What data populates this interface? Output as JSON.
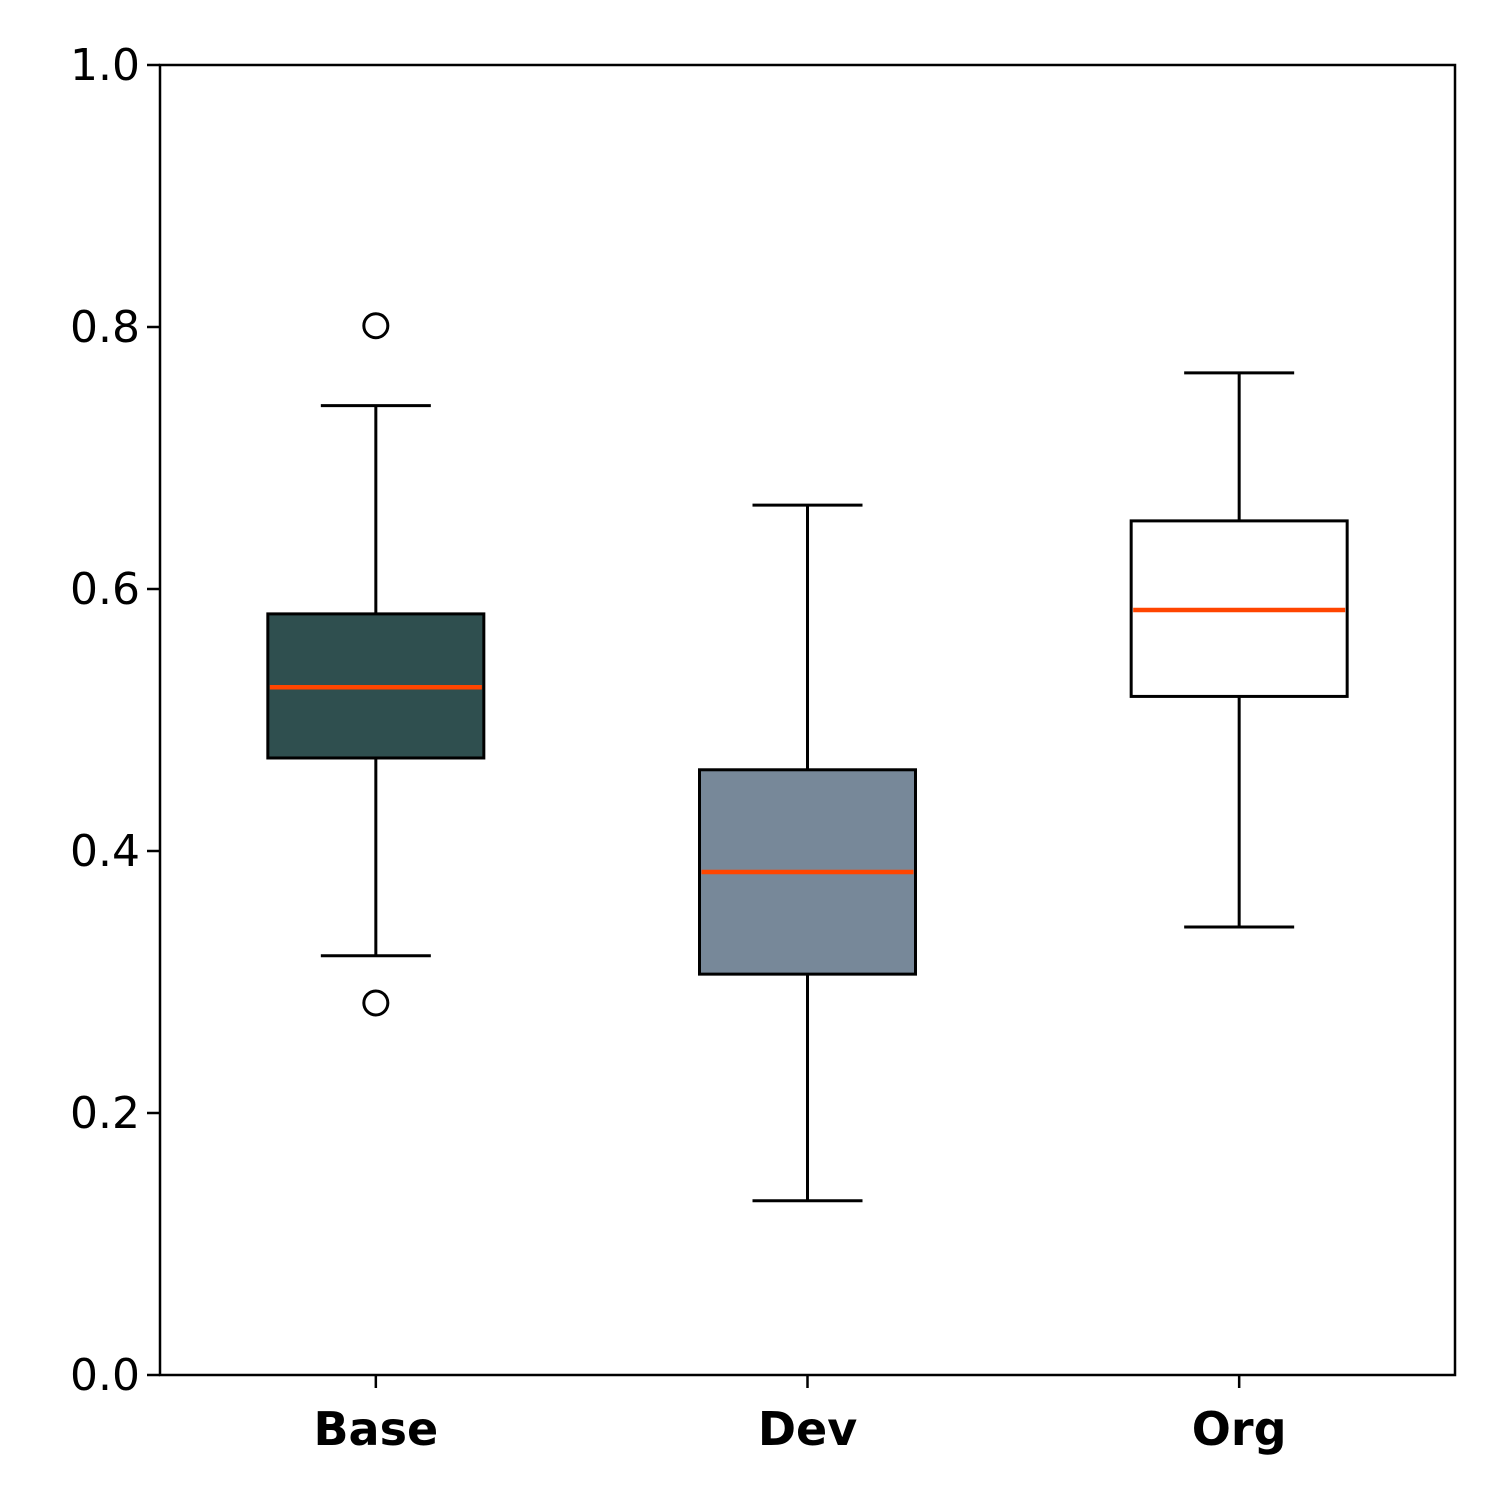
{
  "chart_data": {
    "type": "box",
    "title": "",
    "xlabel": "",
    "ylabel": "",
    "ylim": [
      0.0,
      1.0
    ],
    "yticks": [
      "0.0",
      "0.2",
      "0.4",
      "0.6",
      "0.8",
      "1.0"
    ],
    "grid": false,
    "categories": [
      "Base",
      "Dev",
      "Org"
    ],
    "boxes": [
      {
        "category": "Base",
        "whisker_low": 0.32,
        "q1": 0.471,
        "median": 0.525,
        "q3": 0.581,
        "whisker_high": 0.74,
        "outliers": [
          0.284,
          0.801
        ],
        "color": "#2f4f4f"
      },
      {
        "category": "Dev",
        "whisker_low": 0.133,
        "q1": 0.306,
        "median": 0.384,
        "q3": 0.462,
        "whisker_high": 0.664,
        "outliers": [],
        "color": "#778899"
      },
      {
        "category": "Org",
        "whisker_low": 0.342,
        "q1": 0.518,
        "median": 0.584,
        "q3": 0.652,
        "whisker_high": 0.765,
        "outliers": [],
        "color": "#ffffff"
      }
    ],
    "median_color": "#ff4500"
  }
}
